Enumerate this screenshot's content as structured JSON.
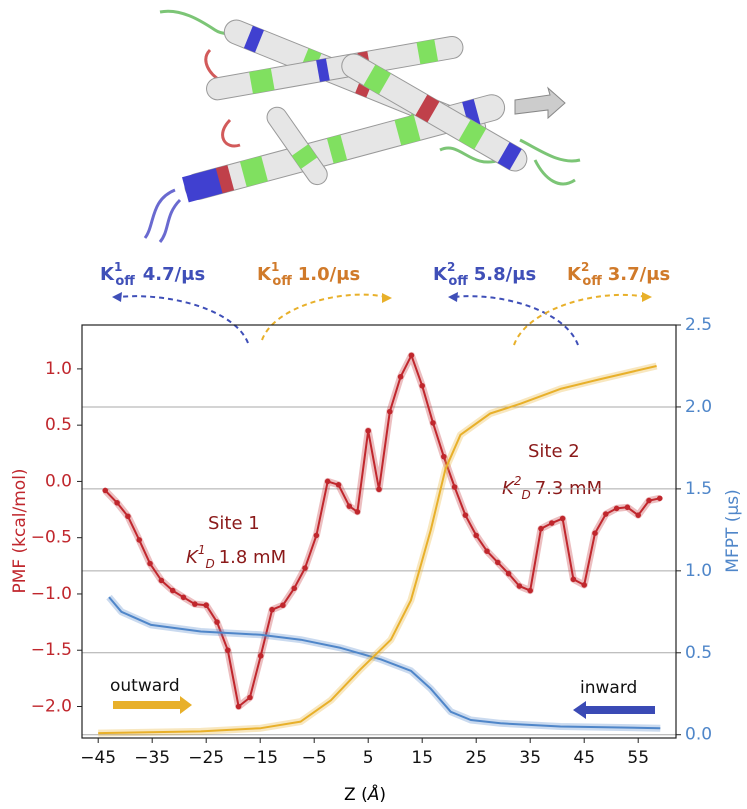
{
  "chart_data": {
    "type": "line",
    "xlabel": {
      "text": "Z (",
      "unit": "Å",
      "close": ")"
    },
    "ylabel": "PMF (kcal/mol)",
    "y2label": "MFPT (μs)",
    "xlim": [
      -48,
      62
    ],
    "xticks": [
      {
        "value": -45,
        "label": "−45"
      },
      {
        "value": -35,
        "label": "−35"
      },
      {
        "value": -25,
        "label": "−25"
      },
      {
        "value": -15,
        "label": "−15"
      },
      {
        "value": -5,
        "label": "−5"
      },
      5,
      15,
      25,
      35,
      45,
      55
    ],
    "ylim": [
      -2.28,
      1.39
    ],
    "yticks": [
      {
        "value": -2,
        "label": "−2.0"
      },
      {
        "value": -1.5,
        "label": "−1.5"
      },
      {
        "value": -1,
        "label": "−1.0"
      },
      {
        "value": -0.5,
        "label": "−0.5"
      },
      {
        "value": 0,
        "label": "0.0"
      },
      {
        "value": 0.5,
        "label": "0.5"
      },
      {
        "value": 1,
        "label": "1.0"
      }
    ],
    "y2lim": [
      -0.02,
      2.5
    ],
    "y2ticks": [
      {
        "value": 0,
        "label": "0.0"
      },
      0.5,
      {
        "value": 1,
        "label": "1.0"
      },
      1.5,
      {
        "value": 2,
        "label": "2.0"
      },
      2.5
    ],
    "grid": "y2",
    "series": [
      {
        "color": "#c0272d",
        "axis": "y",
        "markers": true,
        "x": [
          -43.7,
          -41.5,
          -39.5,
          -37.4,
          -35.4,
          -33.3,
          -31.2,
          -29.2,
          -27.1,
          -25.0,
          -23.0,
          -21.0,
          -19.0,
          -16.9,
          -14.9,
          -12.8,
          -10.8,
          -8.7,
          -6.7,
          -4.6,
          -2.5,
          -0.5,
          1.5,
          3.0,
          5.0,
          7.0,
          9.0,
          11.0,
          13.0,
          15.0,
          17.0,
          19.0,
          21.0,
          23.0,
          25.0,
          27.0,
          29.0,
          31.0,
          33.0,
          35.0,
          37.0,
          39.0,
          41.0,
          43.0,
          45.0,
          47.0,
          49.0,
          51.0,
          53.0,
          55.0,
          57.0,
          59.0
        ],
        "values": [
          -0.08,
          -0.19,
          -0.31,
          -0.52,
          -0.73,
          -0.88,
          -0.97,
          -1.03,
          -1.09,
          -1.1,
          -1.25,
          -1.5,
          -2.0,
          -1.92,
          -1.55,
          -1.14,
          -1.1,
          -0.95,
          -0.77,
          -0.48,
          0.0,
          -0.03,
          -0.22,
          -0.27,
          0.45,
          -0.07,
          0.62,
          0.93,
          1.12,
          0.85,
          0.52,
          0.22,
          -0.05,
          -0.3,
          -0.48,
          -0.62,
          -0.72,
          -0.82,
          -0.93,
          -0.97,
          -0.42,
          -0.37,
          -0.33,
          -0.87,
          -0.92,
          -0.46,
          -0.29,
          -0.24,
          -0.23,
          -0.3,
          -0.17,
          -0.15
        ]
      },
      {
        "color": "#4f86c9",
        "axis": "y2",
        "x": [
          -43,
          -40.7,
          -35.2,
          -26,
          -14.9,
          -7.5,
          -0.1,
          7.3,
          12.9,
          16.6,
          20.3,
          24,
          29.5,
          40.6,
          59.1
        ],
        "values": [
          0.84,
          0.75,
          0.67,
          0.63,
          0.61,
          0.58,
          0.53,
          0.46,
          0.39,
          0.28,
          0.14,
          0.09,
          0.07,
          0.05,
          0.04
        ]
      },
      {
        "color": "#e8b02a",
        "axis": "y2",
        "x": [
          -45,
          -26,
          -14.9,
          -7.5,
          -1.9,
          3.6,
          9.2,
          12.9,
          16.6,
          19.3,
          22.1,
          27.6,
          33.2,
          40.6,
          48,
          58.4
        ],
        "values": [
          0.01,
          0.02,
          0.04,
          0.08,
          0.21,
          0.4,
          0.58,
          0.82,
          1.25,
          1.62,
          1.83,
          1.96,
          2.02,
          2.11,
          2.17,
          2.25
        ]
      }
    ],
    "annotations": [
      {
        "symbol": "K",
        "sup": "1",
        "sub": "off",
        "text": "4.7/μs"
      },
      {
        "symbol": "K",
        "sup": "1",
        "sub": "off",
        "text": "1.0/μs"
      },
      {
        "symbol": "K",
        "sup": "2",
        "sub": "off",
        "text": "5.8/μs"
      },
      {
        "symbol": "K",
        "sup": "2",
        "sub": "off",
        "text": "3.7/μs"
      },
      {
        "text": "Site 1"
      },
      {
        "symbol": "K",
        "sup": "1",
        "sub": "D",
        "text": "1.8 mM"
      },
      {
        "text": "Site 2"
      },
      {
        "symbol": "K",
        "sup": "2",
        "sub": "D",
        "text": "7.3 mM"
      },
      {
        "text": "outward"
      },
      {
        "text": "inward"
      }
    ]
  }
}
